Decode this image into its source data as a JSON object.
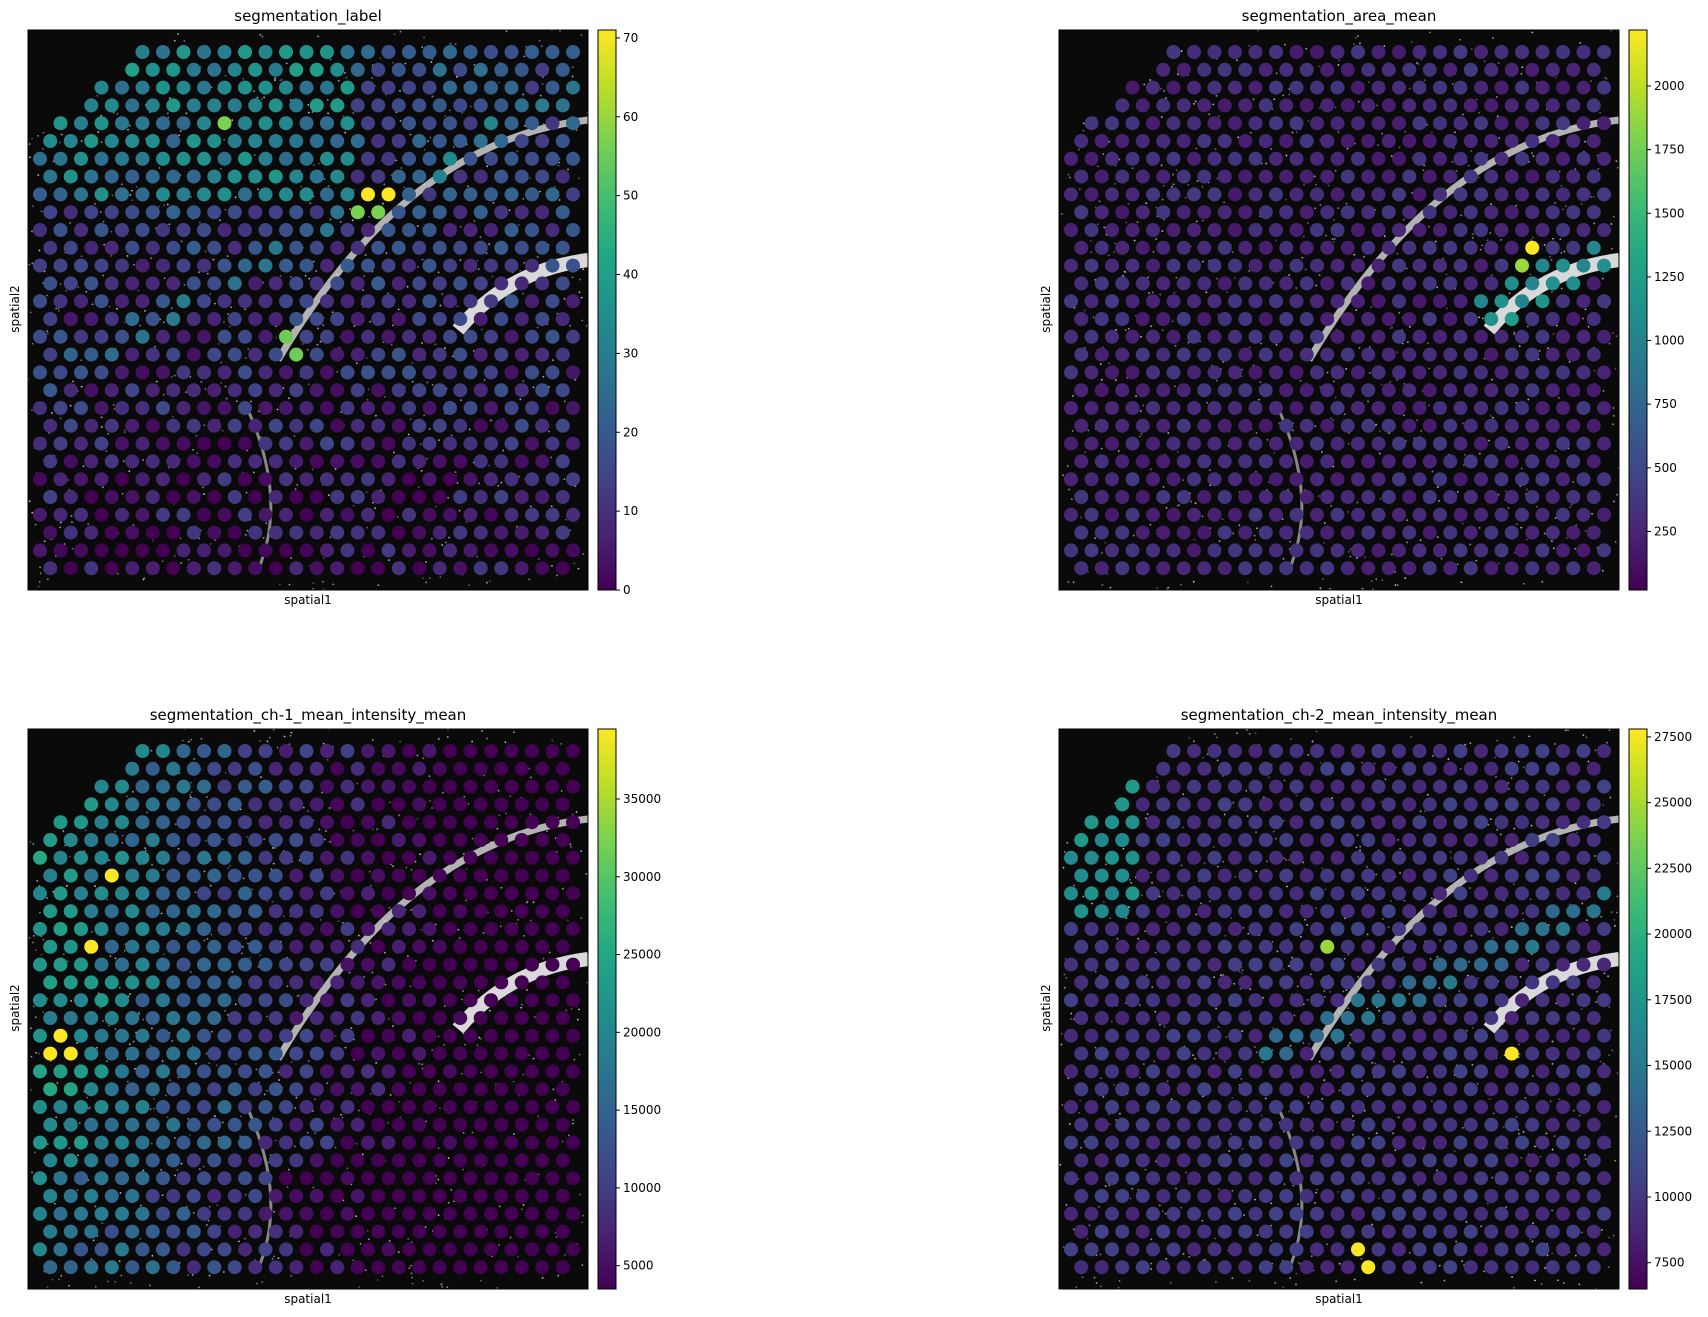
{
  "chart_data": [
    {
      "type": "scatter",
      "title": "segmentation_label",
      "xlabel": "spatial1",
      "ylabel": "spatial2",
      "colormap": "viridis",
      "colorbar": {
        "min": 0,
        "max": 71,
        "ticks": [
          0,
          10,
          20,
          30,
          40,
          50,
          60,
          70
        ],
        "tick_labels": [
          "0",
          "10",
          "20",
          "30",
          "40",
          "50",
          "60",
          "70"
        ]
      },
      "highlights": [
        {
          "value": 71,
          "note": "max spot near upper arc"
        },
        {
          "value": 55,
          "note": "spots along upper arc"
        },
        {
          "value": 50,
          "note": "cluster upper-left"
        }
      ]
    },
    {
      "type": "scatter",
      "title": "segmentation_area_mean",
      "xlabel": "spatial1",
      "ylabel": "spatial2",
      "colormap": "viridis",
      "colorbar": {
        "min": 20,
        "max": 2220,
        "ticks": [
          250,
          500,
          750,
          1000,
          1250,
          1500,
          1750,
          2000
        ],
        "tick_labels": [
          "250",
          "500",
          "750",
          "1000",
          "1250",
          "1500",
          "1750",
          "2000"
        ]
      },
      "highlights": [
        {
          "value": 2200,
          "note": "max spot at right arc"
        },
        {
          "value": 1900,
          "note": "adjacent spot"
        },
        {
          "value": 1200,
          "note": "spots along right arc"
        }
      ]
    },
    {
      "type": "scatter",
      "title": "segmentation_ch-1_mean_intensity_mean",
      "xlabel": "spatial1",
      "ylabel": "spatial2",
      "colormap": "viridis",
      "colorbar": {
        "min": 3500,
        "max": 39500,
        "ticks": [
          5000,
          10000,
          15000,
          20000,
          25000,
          30000,
          35000
        ],
        "tick_labels": [
          "5000",
          "10000",
          "15000",
          "20000",
          "25000",
          "30000",
          "35000"
        ]
      },
      "highlights": [
        {
          "value": 39000,
          "note": "max spots on left edge"
        },
        {
          "value": 30000,
          "note": "spots in upper-left"
        }
      ]
    },
    {
      "type": "scatter",
      "title": "segmentation_ch-2_mean_intensity_mean",
      "xlabel": "spatial1",
      "ylabel": "spatial2",
      "colormap": "viridis",
      "colorbar": {
        "min": 6500,
        "max": 27800,
        "ticks": [
          7500,
          10000,
          12500,
          15000,
          17500,
          20000,
          22500,
          25000,
          27500
        ],
        "tick_labels": [
          "7500",
          "10000",
          "12500",
          "15000",
          "17500",
          "20000",
          "22500",
          "25000",
          "27500"
        ]
      },
      "highlights": [
        {
          "value": 27500,
          "note": "max spots"
        },
        {
          "value": 22000,
          "note": "spots along lower arc"
        }
      ]
    }
  ]
}
